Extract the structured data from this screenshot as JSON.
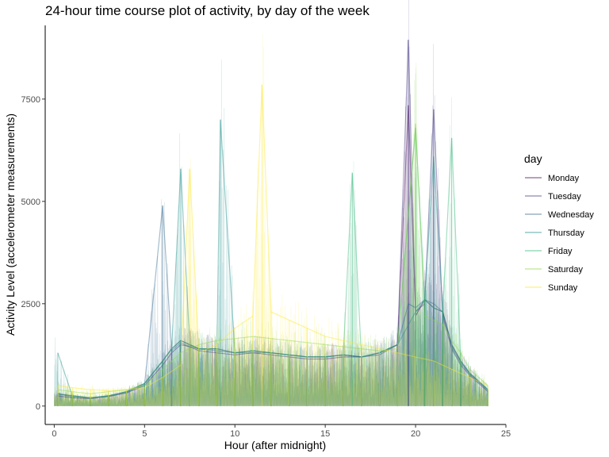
{
  "chart_data": {
    "type": "line",
    "title": "24-hour time course plot of activity, by day of the week",
    "xlabel": "Hour (after midnight)",
    "ylabel": "Activity Level (accelerometer measurements)",
    "xlim": [
      -0.5,
      25
    ],
    "ylim": [
      -450,
      9300
    ],
    "x_ticks": [
      0,
      5,
      10,
      15,
      20,
      25
    ],
    "y_ticks": [
      0,
      2500,
      5000,
      7500
    ],
    "x_tick_labels": [
      "0",
      "5",
      "10",
      "15",
      "20",
      "25"
    ],
    "y_tick_labels": [
      "0",
      "2500",
      "5000",
      "7500"
    ],
    "grid": false,
    "legend": {
      "title": "day",
      "position": "right"
    },
    "series": [
      {
        "name": "Monday",
        "color": "#440154",
        "x": [
          0.2,
          1.0,
          2.0,
          3.0,
          4.0,
          5.0,
          6.0,
          6.5,
          7.0,
          7.5,
          8.0,
          9.0,
          10.0,
          11.0,
          12.0,
          13.0,
          14.0,
          15.0,
          16.0,
          17.0,
          18.0,
          19.0,
          19.6,
          20.0,
          20.5,
          21.0,
          21.5,
          22.0,
          22.5,
          23.0,
          24.0
        ],
        "y": [
          300,
          250,
          200,
          250,
          350,
          550,
          1100,
          1400,
          1600,
          1500,
          1400,
          1400,
          1300,
          1350,
          1300,
          1250,
          1200,
          1200,
          1250,
          1200,
          1300,
          1500,
          7350,
          2200,
          2600,
          2400,
          2300,
          1500,
          1100,
          800,
          400
        ]
      },
      {
        "name": "Tuesday",
        "color": "#443a83",
        "x": [
          0.2,
          1.0,
          2.0,
          3.0,
          4.0,
          5.0,
          6.0,
          6.5,
          7.0,
          7.5,
          8.0,
          9.0,
          10.0,
          11.0,
          12.0,
          13.0,
          14.0,
          15.0,
          16.0,
          17.0,
          18.0,
          19.0,
          19.6,
          20.0,
          20.5,
          21.0,
          21.5,
          22.0,
          22.5,
          23.0,
          24.0
        ],
        "y": [
          250,
          200,
          180,
          230,
          320,
          500,
          1000,
          1300,
          1500,
          1450,
          1350,
          1300,
          1250,
          1300,
          1250,
          1200,
          1150,
          1150,
          1200,
          1200,
          1250,
          1500,
          8950,
          2300,
          2500,
          7250,
          2200,
          1400,
          1000,
          750,
          350
        ]
      },
      {
        "name": "Wednesday",
        "color": "#31688e",
        "x": [
          0.2,
          1.0,
          2.0,
          3.0,
          4.0,
          5.0,
          6.0,
          6.5,
          7.0,
          7.5,
          8.0,
          9.0,
          10.0,
          11.0,
          12.0,
          13.0,
          14.0,
          15.0,
          16.0,
          17.0,
          18.0,
          19.0,
          19.6,
          20.0,
          20.5,
          21.0,
          21.5,
          22.0,
          22.5,
          23.0,
          24.0
        ],
        "y": [
          300,
          220,
          200,
          240,
          330,
          520,
          4900,
          1350,
          1550,
          1450,
          1400,
          1350,
          1300,
          1300,
          1300,
          1250,
          1200,
          1200,
          1250,
          1200,
          1300,
          1500,
          2500,
          2400,
          2600,
          2500,
          2300,
          1450,
          1050,
          780,
          380
        ]
      },
      {
        "name": "Thursday",
        "color": "#21908c",
        "x": [
          0.2,
          1.0,
          2.0,
          3.0,
          4.0,
          5.0,
          6.0,
          6.5,
          7.0,
          7.5,
          8.0,
          9.0,
          9.2,
          10.0,
          11.0,
          12.0,
          13.0,
          14.0,
          15.0,
          16.0,
          17.0,
          18.0,
          19.0,
          20.0,
          20.5,
          21.0,
          21.5,
          22.0,
          22.5,
          23.0,
          24.0
        ],
        "y": [
          1300,
          250,
          200,
          250,
          350,
          550,
          1100,
          1400,
          5800,
          1500,
          1400,
          1400,
          7000,
          1300,
          1350,
          1300,
          1250,
          1200,
          1200,
          1250,
          1200,
          1300,
          1500,
          2300,
          2600,
          6100,
          2300,
          1500,
          1100,
          800,
          400
        ]
      },
      {
        "name": "Friday",
        "color": "#35b779",
        "x": [
          0.2,
          1.0,
          2.0,
          3.0,
          4.0,
          5.0,
          6.0,
          6.5,
          7.0,
          7.5,
          8.0,
          9.0,
          10.0,
          11.0,
          12.0,
          13.0,
          14.0,
          15.0,
          16.0,
          16.5,
          17.0,
          18.0,
          19.0,
          20.0,
          20.5,
          21.0,
          21.5,
          22.0,
          22.5,
          23.0,
          24.0
        ],
        "y": [
          300,
          250,
          200,
          250,
          350,
          550,
          1100,
          1400,
          1600,
          1500,
          1400,
          1400,
          1300,
          1350,
          1300,
          1250,
          1200,
          1200,
          1250,
          5700,
          1200,
          1300,
          1500,
          6800,
          2600,
          2400,
          2300,
          6550,
          1100,
          800,
          400
        ]
      },
      {
        "name": "Saturday",
        "color": "#8fd744",
        "x": [
          0.2,
          1.0,
          2.0,
          3.0,
          4.0,
          5.0,
          6.0,
          6.5,
          7.0,
          7.5,
          8.0,
          9.0,
          10.0,
          11.0,
          12.0,
          13.0,
          14.0,
          15.0,
          16.0,
          17.0,
          18.0,
          19.0,
          20.0,
          20.5,
          21.0,
          21.5,
          22.0,
          22.5,
          23.0,
          24.0
        ],
        "y": [
          400,
          350,
          300,
          350,
          400,
          500,
          900,
          1100,
          1300,
          1400,
          1500,
          1600,
          1650,
          1700,
          1650,
          1600,
          1550,
          1500,
          1450,
          1400,
          1350,
          1400,
          6900,
          2200,
          2100,
          2000,
          1600,
          1300,
          900,
          500
        ]
      },
      {
        "name": "Sunday",
        "color": "#fde725",
        "x": [
          0.2,
          1.0,
          2.0,
          3.0,
          4.0,
          5.0,
          6.0,
          7.0,
          7.5,
          8.0,
          9.0,
          10.0,
          11.0,
          11.5,
          12.0,
          13.0,
          14.0,
          15.0,
          16.0,
          17.0,
          18.0,
          19.0,
          20.0,
          21.0,
          22.0,
          23.0,
          24.0
        ],
        "y": [
          500,
          450,
          400,
          380,
          400,
          450,
          700,
          1000,
          5800,
          1300,
          1500,
          1900,
          2200,
          7850,
          2300,
          2100,
          1900,
          1700,
          1600,
          1500,
          1400,
          1300,
          1200,
          1100,
          900,
          700,
          500
        ]
      }
    ]
  }
}
